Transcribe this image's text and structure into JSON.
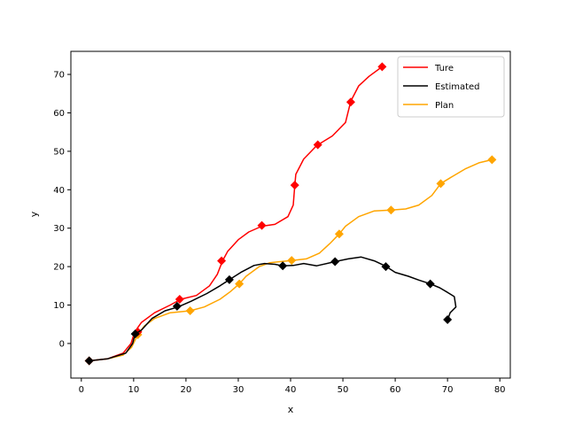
{
  "chart_data": {
    "type": "line",
    "title": "",
    "xlabel": "x",
    "ylabel": "y",
    "xlim": [
      -2,
      82
    ],
    "ylim": [
      -9,
      76
    ],
    "xticks": [
      0,
      10,
      20,
      30,
      40,
      50,
      60,
      70,
      80
    ],
    "yticks": [
      0,
      10,
      20,
      30,
      40,
      50,
      60,
      70
    ],
    "grid": false,
    "legend_position": "top-right",
    "series": [
      {
        "name": "Ture",
        "color": "#ff0000",
        "line": [
          [
            1.5,
            -4.5
          ],
          [
            5,
            -4
          ],
          [
            8,
            -2.5
          ],
          [
            9.5,
            0
          ],
          [
            10.2,
            3
          ],
          [
            11.5,
            5.5
          ],
          [
            14,
            8
          ],
          [
            17,
            10
          ],
          [
            19,
            11.5
          ],
          [
            22,
            12.5
          ],
          [
            24.5,
            15
          ],
          [
            26,
            18
          ],
          [
            27,
            21.5
          ],
          [
            28,
            24
          ],
          [
            30,
            27
          ],
          [
            32,
            29
          ],
          [
            34.5,
            30.5
          ],
          [
            37,
            31
          ],
          [
            39.5,
            33
          ],
          [
            40.5,
            36
          ],
          [
            40.8,
            41
          ],
          [
            41,
            44
          ],
          [
            42.5,
            48
          ],
          [
            45,
            51.5
          ],
          [
            48,
            54
          ],
          [
            50.5,
            57.5
          ],
          [
            51.5,
            63
          ],
          [
            53,
            67
          ],
          [
            55,
            69.5
          ],
          [
            57.5,
            72
          ]
        ],
        "markers": [
          [
            1.5,
            -4.5
          ],
          [
            10.8,
            3
          ],
          [
            18.8,
            11.5
          ],
          [
            26.8,
            21.5
          ],
          [
            34.5,
            30.7
          ],
          [
            40.8,
            41.2
          ],
          [
            45.2,
            51.7
          ],
          [
            51.5,
            62.8
          ],
          [
            57.5,
            72
          ]
        ]
      },
      {
        "name": "Estimated",
        "color": "#000000",
        "line": [
          [
            1.5,
            -4.5
          ],
          [
            5,
            -4
          ],
          [
            8.5,
            -2.5
          ],
          [
            9.8,
            0
          ],
          [
            10.3,
            2.5
          ],
          [
            11.5,
            3.5
          ],
          [
            13.5,
            6.5
          ],
          [
            16,
            8.5
          ],
          [
            18.5,
            9.5
          ],
          [
            21,
            11
          ],
          [
            24,
            13
          ],
          [
            26.5,
            15
          ],
          [
            28.3,
            16.6
          ],
          [
            30.5,
            18.5
          ],
          [
            33,
            20.3
          ],
          [
            35,
            20.8
          ],
          [
            37,
            20.6
          ],
          [
            38.5,
            20.2
          ],
          [
            40.5,
            20.3
          ],
          [
            42.5,
            20.8
          ],
          [
            45,
            20.2
          ],
          [
            48.5,
            21.3
          ],
          [
            51,
            22
          ],
          [
            53.5,
            22.5
          ],
          [
            56,
            21.5
          ],
          [
            58.2,
            20.1
          ],
          [
            60,
            18.5
          ],
          [
            62.5,
            17.5
          ],
          [
            64.5,
            16.5
          ],
          [
            66.7,
            15.5
          ],
          [
            68.5,
            14.5
          ],
          [
            70,
            13.3
          ],
          [
            71.3,
            12.2
          ],
          [
            71.6,
            9.5
          ],
          [
            70.5,
            8
          ],
          [
            70,
            6
          ]
        ],
        "markers": [
          [
            1.5,
            -4.5
          ],
          [
            10.3,
            2.5
          ],
          [
            18.3,
            9.7
          ],
          [
            28.3,
            16.6
          ],
          [
            38.5,
            20.2
          ],
          [
            48.5,
            21.3
          ],
          [
            58.2,
            20
          ],
          [
            66.7,
            15.5
          ],
          [
            70,
            6.2
          ]
        ]
      },
      {
        "name": "Plan",
        "color": "#ffa500",
        "line": [
          [
            1.5,
            -4.5
          ],
          [
            5,
            -4
          ],
          [
            8,
            -3
          ],
          [
            9.6,
            -1
          ],
          [
            10.8,
            2.3
          ],
          [
            12,
            4.5
          ],
          [
            14,
            6.5
          ],
          [
            17,
            8
          ],
          [
            20.8,
            8.5
          ],
          [
            23.5,
            9.5
          ],
          [
            26.5,
            11.5
          ],
          [
            28.5,
            13.5
          ],
          [
            30.2,
            15.5
          ],
          [
            31.5,
            17.5
          ],
          [
            34,
            20
          ],
          [
            36,
            21
          ],
          [
            38,
            21.3
          ],
          [
            40.2,
            21.6
          ],
          [
            43,
            22
          ],
          [
            45.5,
            23.5
          ],
          [
            47.5,
            26
          ],
          [
            49.3,
            28.5
          ],
          [
            50.5,
            30.5
          ],
          [
            53,
            33
          ],
          [
            56,
            34.5
          ],
          [
            59.2,
            34.7
          ],
          [
            62,
            35
          ],
          [
            64.5,
            36
          ],
          [
            67,
            38.5
          ],
          [
            68.7,
            41.6
          ],
          [
            71,
            43.5
          ],
          [
            73.5,
            45.5
          ],
          [
            76,
            47
          ],
          [
            78.5,
            47.8
          ]
        ],
        "markers": [
          [
            1.5,
            -4.5
          ],
          [
            10.8,
            2.3
          ],
          [
            20.8,
            8.5
          ],
          [
            30.2,
            15.5
          ],
          [
            40.2,
            21.6
          ],
          [
            49.3,
            28.5
          ],
          [
            59.2,
            34.7
          ],
          [
            68.7,
            41.6
          ],
          [
            78.5,
            47.8
          ]
        ]
      }
    ]
  }
}
